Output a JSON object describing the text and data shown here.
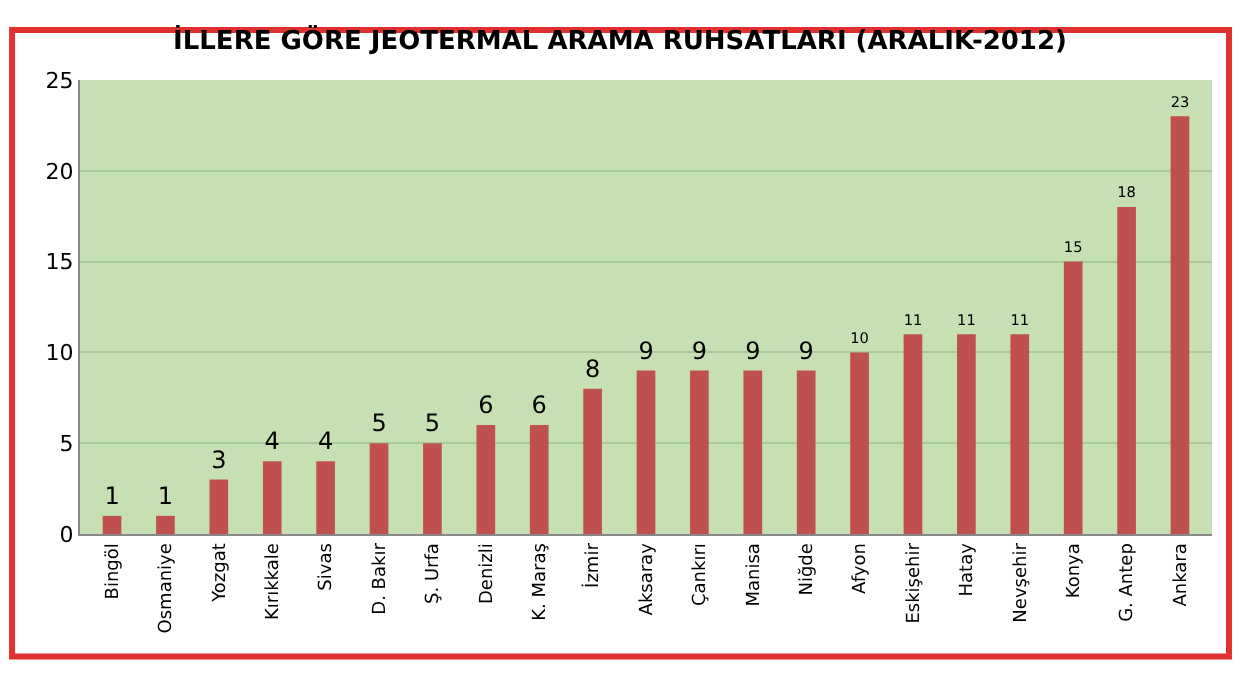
{
  "chart_data": {
    "type": "bar",
    "title": "İLLERE GÖRE JEOTERMAL ARAMA RUHSATLARI (ARALIK-2012)",
    "categories": [
      "Bingöl",
      "Osmaniye",
      "Yozgat",
      "Kırıkkale",
      "Sivas",
      "D. Bakır",
      "Ş. Urfa",
      "Denizli",
      "K. Maraş",
      "İzmir",
      "Aksaray",
      "Çankırı",
      "Manisa",
      "Niğde",
      "Afyon",
      "Eskişehir",
      "Hatay",
      "Nevşehir",
      "Konya",
      "G. Antep",
      "Ankara"
    ],
    "values": [
      1,
      1,
      3,
      4,
      4,
      5,
      5,
      6,
      6,
      8,
      9,
      9,
      9,
      9,
      10,
      11,
      11,
      11,
      15,
      18,
      23
    ],
    "color": "#c0504d",
    "ylim": [
      0,
      25
    ],
    "yticks": [
      0,
      5,
      10,
      15,
      20,
      25
    ],
    "grid": "y",
    "data_labels": true
  }
}
